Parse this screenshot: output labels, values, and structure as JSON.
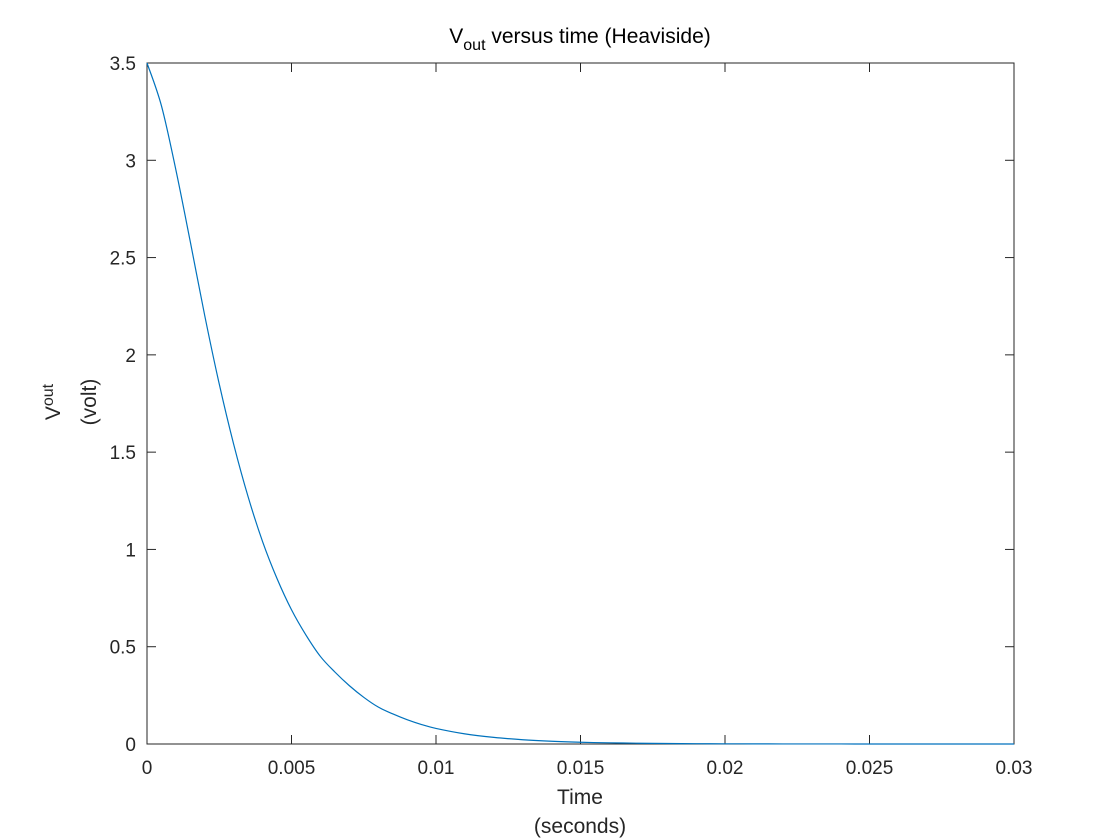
{
  "chart_data": {
    "type": "line",
    "title": {
      "main": "V",
      "sub": "out",
      "rest": " versus time (Heaviside)"
    },
    "xlabel": {
      "line1": "Time",
      "line2": "(seconds)"
    },
    "ylabel": {
      "main": "V",
      "sub": "out",
      "line2": "(volt)"
    },
    "xlim": [
      0,
      0.03
    ],
    "ylim": [
      0,
      3.5
    ],
    "xticks": [
      0,
      0.005,
      0.01,
      0.015,
      0.02,
      0.025,
      0.03
    ],
    "xtick_labels": [
      "0",
      "0.005",
      "0.01",
      "0.015",
      "0.02",
      "0.025",
      "0.03"
    ],
    "yticks": [
      0,
      0.5,
      1,
      1.5,
      2,
      2.5,
      3,
      3.5
    ],
    "ytick_labels": [
      "0",
      "0.5",
      "1",
      "1.5",
      "2",
      "2.5",
      "3",
      "3.5"
    ],
    "grid": false,
    "series": [
      {
        "color": "#0072BD",
        "x": [
          0,
          0.0005,
          0.001,
          0.0015,
          0.002,
          0.0025,
          0.003,
          0.0035,
          0.004,
          0.0045,
          0.005,
          0.0055,
          0.006,
          0.0065,
          0.007,
          0.0075,
          0.008,
          0.0085,
          0.009,
          0.0095,
          0.01,
          0.011,
          0.012,
          0.013,
          0.014,
          0.015,
          0.016,
          0.017,
          0.018,
          0.019,
          0.02,
          0.021,
          0.022,
          0.023,
          0.024,
          0.025,
          0.026,
          0.027,
          0.028,
          0.029,
          0.03
        ],
        "y": [
          3.5,
          3.28,
          2.95,
          2.58,
          2.2,
          1.85,
          1.54,
          1.27,
          1.04,
          0.85,
          0.69,
          0.56,
          0.45,
          0.37,
          0.3,
          0.24,
          0.19,
          0.155,
          0.125,
          0.1,
          0.08,
          0.052,
          0.034,
          0.022,
          0.014,
          0.009,
          0.006,
          0.004,
          0.0025,
          0.0016,
          0.001,
          0.0007,
          0.0004,
          0.0003,
          0.0002,
          0.0001,
          0.0001,
          0.0,
          0.0,
          0.0,
          0.0
        ]
      }
    ]
  }
}
